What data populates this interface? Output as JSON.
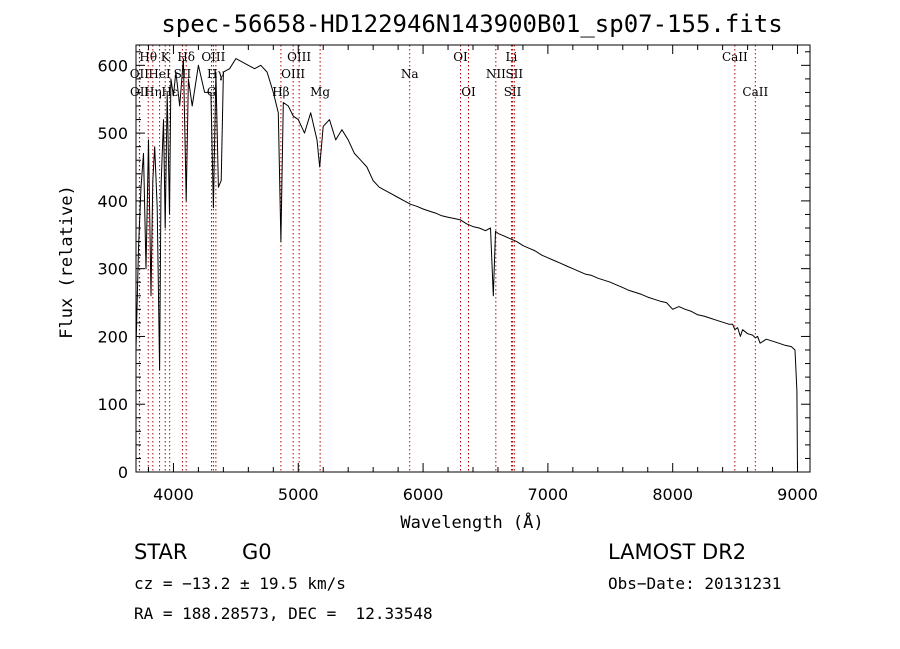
{
  "chart_data": {
    "type": "line",
    "title": "spec-56658-HD122946N143900B01_sp07-155.fits",
    "xlabel": "Wavelength (Å)",
    "ylabel": "Flux (relative)",
    "xlim": [
      3700,
      9100
    ],
    "ylim": [
      0,
      630
    ],
    "xticks": [
      4000,
      5000,
      6000,
      7000,
      8000,
      9000
    ],
    "yticks": [
      0,
      100,
      200,
      300,
      400,
      500,
      600
    ],
    "series": [
      {
        "name": "flux",
        "x": [
          3700,
          3720,
          3740,
          3760,
          3780,
          3800,
          3820,
          3835,
          3850,
          3870,
          3889,
          3900,
          3920,
          3934,
          3950,
          3968,
          3980,
          4000,
          4020,
          4050,
          4080,
          4102,
          4120,
          4150,
          4200,
          4250,
          4300,
          4320,
          4340,
          4360,
          4383,
          4400,
          4450,
          4500,
          4550,
          4600,
          4650,
          4700,
          4750,
          4800,
          4840,
          4861,
          4880,
          4920,
          4960,
          5000,
          5050,
          5100,
          5150,
          5172,
          5200,
          5250,
          5300,
          5350,
          5400,
          5450,
          5500,
          5550,
          5600,
          5650,
          5700,
          5750,
          5800,
          5850,
          5900,
          5950,
          6000,
          6050,
          6100,
          6150,
          6200,
          6250,
          6300,
          6350,
          6400,
          6450,
          6500,
          6540,
          6563,
          6580,
          6600,
          6650,
          6700,
          6750,
          6800,
          6850,
          6900,
          6950,
          7000,
          7050,
          7100,
          7150,
          7200,
          7250,
          7300,
          7350,
          7400,
          7450,
          7500,
          7550,
          7600,
          7650,
          7700,
          7750,
          7800,
          7850,
          7900,
          7950,
          8000,
          8050,
          8100,
          8150,
          8200,
          8250,
          8300,
          8350,
          8400,
          8450,
          8480,
          8498,
          8520,
          8542,
          8560,
          8600,
          8640,
          8662,
          8680,
          8700,
          8750,
          8800,
          8850,
          8900,
          8950,
          8980,
          8995,
          9000
        ],
        "y": [
          180,
          330,
          420,
          470,
          300,
          490,
          260,
          430,
          480,
          390,
          150,
          420,
          520,
          360,
          560,
          380,
          580,
          555,
          590,
          540,
          610,
          400,
          580,
          540,
          600,
          560,
          560,
          390,
          590,
          420,
          430,
          590,
          595,
          610,
          605,
          600,
          595,
          600,
          590,
          560,
          530,
          340,
          545,
          540,
          525,
          520,
          500,
          530,
          490,
          450,
          510,
          520,
          490,
          505,
          490,
          470,
          460,
          450,
          430,
          420,
          415,
          410,
          405,
          400,
          395,
          392,
          388,
          385,
          382,
          378,
          376,
          374,
          372,
          366,
          362,
          360,
          356,
          360,
          260,
          355,
          352,
          348,
          344,
          340,
          334,
          330,
          326,
          320,
          316,
          312,
          308,
          304,
          300,
          296,
          292,
          290,
          286,
          283,
          280,
          276,
          272,
          268,
          265,
          262,
          258,
          255,
          252,
          250,
          240,
          244,
          240,
          237,
          232,
          230,
          227,
          224,
          221,
          218,
          218,
          210,
          213,
          200,
          210,
          204,
          202,
          198,
          200,
          190,
          196,
          193,
          190,
          187,
          185,
          180,
          120,
          0
        ]
      }
    ],
    "line_markers": [
      {
        "label": "OII",
        "wavelength": 3727,
        "row": 2
      },
      {
        "label": "OII",
        "wavelength": 3729,
        "row": 3
      },
      {
        "label": "Hθ",
        "wavelength": 3798,
        "row": 1
      },
      {
        "label": "Hη",
        "wavelength": 3835,
        "row": 3
      },
      {
        "label": "HeI",
        "wavelength": 3889,
        "row": 2
      },
      {
        "label": "K",
        "wavelength": 3934,
        "row": 1
      },
      {
        "label": "Hε",
        "wavelength": 3970,
        "row": 3
      },
      {
        "label": "SII",
        "wavelength": 4072,
        "row": 2
      },
      {
        "label": "Hδ",
        "wavelength": 4102,
        "row": 1
      },
      {
        "label": "OIII",
        "wavelength": 4320,
        "row": 1
      },
      {
        "label": "Hγ",
        "wavelength": 4340,
        "row": 2
      },
      {
        "label": "G",
        "wavelength": 4305,
        "row": 3
      },
      {
        "label": "Hβ",
        "wavelength": 4861,
        "row": 3
      },
      {
        "label": "OIII",
        "wavelength": 4959,
        "row": 2
      },
      {
        "label": "OIII",
        "wavelength": 5007,
        "row": 1
      },
      {
        "label": "Mg",
        "wavelength": 5175,
        "row": 3
      },
      {
        "label": "Na",
        "wavelength": 5893,
        "row": 2
      },
      {
        "label": "OI",
        "wavelength": 6300,
        "row": 1
      },
      {
        "label": "OI",
        "wavelength": 6364,
        "row": 3
      },
      {
        "label": "NII",
        "wavelength": 6583,
        "row": 2
      },
      {
        "label": "Li",
        "wavelength": 6708,
        "row": 1
      },
      {
        "label": "SII",
        "wavelength": 6717,
        "row": 3
      },
      {
        "label": "SII",
        "wavelength": 6731,
        "row": 2
      },
      {
        "label": "CaII",
        "wavelength": 8498,
        "row": 1
      },
      {
        "label": "CaII",
        "wavelength": 8662,
        "row": 3
      }
    ],
    "marker_color": "#b30000",
    "line_color": "#000000"
  },
  "info": {
    "class_label": "STAR",
    "subclass": "G0",
    "survey": "LAMOST DR2",
    "redshift": "cz = −13.2 ± 19.5 km/s",
    "obs_date": "Obs−Date: 20131231",
    "coords": "RA = 188.28573, DEC =  12.33548"
  }
}
